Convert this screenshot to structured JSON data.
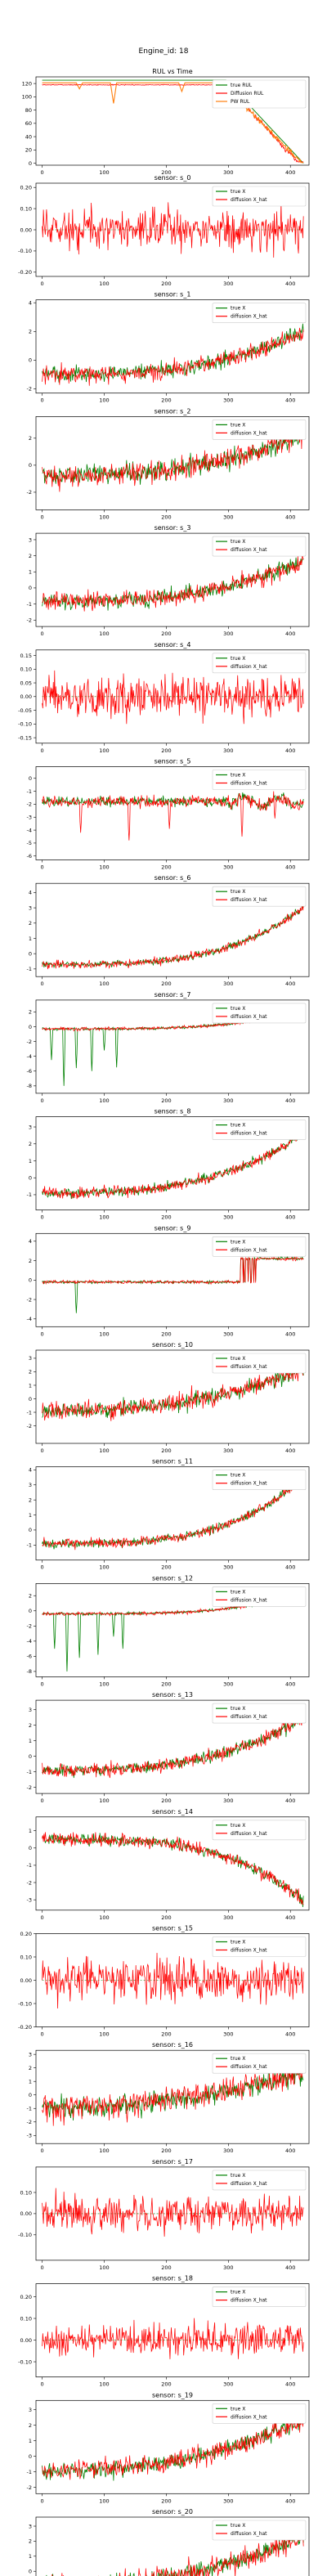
{
  "suptitle": "Engine_id: 18",
  "colors": {
    "true": "#008000",
    "pred": "#ff0000",
    "pw": "#ff7f0e",
    "rul_true": "#008000"
  },
  "chart_data": [
    {
      "type": "line",
      "title": "RUL vs Time",
      "xlim": [
        -10,
        430
      ],
      "xticks": [
        0,
        100,
        200,
        300,
        400
      ],
      "ylim": [
        -3,
        130
      ],
      "yticks": [
        0,
        20,
        40,
        60,
        80,
        100,
        120
      ],
      "legend": [
        "true RUL",
        "Diffusion RUL",
        "PW RUL"
      ],
      "legend_position": "top-right",
      "series": {
        "true": {
          "kind": "rul_true",
          "cap": 125,
          "length": 422
        },
        "diffusion": {
          "kind": "rul_diffusion",
          "base": 118
        },
        "pw": {
          "kind": "rul_pw",
          "base": 121,
          "dips": [
            [
              60,
              112
            ],
            [
              115,
              90
            ],
            [
              225,
              108
            ]
          ]
        }
      }
    },
    {
      "type": "line",
      "title": "sensor: s_0",
      "ylim": [
        -0.22,
        0.22
      ],
      "yticks": [
        -0.2,
        -0.1,
        0.0,
        0.1,
        0.2
      ],
      "legend": [
        "true X",
        "diffusion X_hat"
      ],
      "legend_position": "top-right",
      "series": {
        "kind": "flat",
        "noise": 0.09,
        "true_visible": false
      }
    },
    {
      "type": "line",
      "title": "sensor: s_1",
      "ylim": [
        -2.3,
        4.2
      ],
      "yticks": [
        -2,
        0,
        2,
        4
      ],
      "legend": [
        "true X",
        "diffusion X_hat"
      ],
      "legend_position": "top-right",
      "series": {
        "kind": "trend_up",
        "start": -1.0,
        "end": 2.0,
        "noise": 0.6,
        "curve": 3
      }
    },
    {
      "type": "line",
      "title": "sensor: s_2",
      "ylim": [
        -3.3,
        3.6
      ],
      "yticks": [
        -2,
        0,
        2
      ],
      "legend": [
        "true X",
        "diffusion X_hat"
      ],
      "legend_position": "top-right",
      "series": {
        "kind": "trend_up",
        "start": -0.8,
        "end": 2.2,
        "noise": 0.8,
        "curve": 2.5
      }
    },
    {
      "type": "line",
      "title": "sensor: s_3",
      "ylim": [
        -2.4,
        3.4
      ],
      "yticks": [
        -2,
        -1,
        0,
        1,
        2,
        3
      ],
      "legend": [
        "true X",
        "diffusion X_hat"
      ],
      "legend_position": "top-right",
      "series": {
        "kind": "trend_up",
        "start": -0.8,
        "end": 1.7,
        "noise": 0.55,
        "curve": 3
      }
    },
    {
      "type": "line",
      "title": "sensor: s_4",
      "ylim": [
        -0.17,
        0.17
      ],
      "yticks": [
        -0.15,
        -0.1,
        -0.05,
        0.0,
        0.05,
        0.1,
        0.15
      ],
      "legend": [
        "true X",
        "diffusion X_hat"
      ],
      "legend_position": "top-right",
      "series": {
        "kind": "flat",
        "noise": 0.07,
        "true_visible": false
      }
    },
    {
      "type": "line",
      "title": "sensor: s_5",
      "ylim": [
        -6.3,
        0.9
      ],
      "yticks": [
        -6,
        -5,
        -4,
        -3,
        -2,
        -1,
        0
      ],
      "legend": [
        "true X",
        "diffusion X_hat"
      ],
      "legend_position": "top-right",
      "series": {
        "kind": "stepped",
        "base": -1.8,
        "noise": 0.4,
        "spikes": [
          [
            62,
            -4.2
          ],
          [
            140,
            -4.8
          ],
          [
            205,
            -3.9
          ],
          [
            322,
            -4.5
          ],
          [
            375,
            -3.1
          ]
        ]
      }
    },
    {
      "type": "line",
      "title": "sensor: s_6",
      "ylim": [
        -1.5,
        4.6
      ],
      "yticks": [
        -1,
        0,
        1,
        2,
        3,
        4
      ],
      "legend": [
        "true X",
        "diffusion X_hat"
      ],
      "legend_position": "top-right",
      "series": {
        "kind": "trend_up",
        "start": -0.7,
        "end": 3.0,
        "noise": 0.25,
        "curve": 3.5
      }
    },
    {
      "type": "line",
      "title": "sensor: s_7",
      "ylim": [
        -9.0,
        3.6
      ],
      "yticks": [
        -8,
        -6,
        -4,
        -2,
        0,
        2
      ],
      "legend": [
        "true X",
        "diffusion X_hat"
      ],
      "legend_position": "top-right",
      "series": {
        "kind": "trend_up",
        "start": -0.3,
        "end": 2.3,
        "noise": 0.2,
        "curve": 4,
        "neg_spikes": [
          [
            15,
            -4.5
          ],
          [
            35,
            -8.0
          ],
          [
            55,
            -5.6
          ],
          [
            80,
            -6.0
          ],
          [
            100,
            -3.2
          ],
          [
            120,
            -5.5
          ]
        ]
      }
    },
    {
      "type": "line",
      "title": "sensor: s_8",
      "ylim": [
        -1.9,
        3.6
      ],
      "yticks": [
        -1,
        0,
        1,
        2,
        3
      ],
      "legend": [
        "true X",
        "diffusion X_hat"
      ],
      "legend_position": "top-right",
      "series": {
        "kind": "trend_up",
        "start": -0.9,
        "end": 2.6,
        "noise": 0.3,
        "curve": 3
      }
    },
    {
      "type": "line",
      "title": "sensor: s_9",
      "ylim": [
        -4.8,
        4.8
      ],
      "yticks": [
        -4,
        -2,
        0,
        2,
        4
      ],
      "legend": [
        "true X",
        "diffusion X_hat"
      ],
      "legend_position": "top-right",
      "series": {
        "kind": "jump",
        "base": -0.2,
        "jump_at": 320,
        "high": 2.2,
        "noise": 0.15,
        "neg_spikes": [
          [
            55,
            -3.4
          ]
        ]
      }
    },
    {
      "type": "line",
      "title": "sensor: s_10",
      "ylim": [
        -3.3,
        3.6
      ],
      "yticks": [
        -2,
        -1,
        0,
        1,
        2,
        3
      ],
      "legend": [
        "true X",
        "diffusion X_hat"
      ],
      "legend_position": "top-right",
      "series": {
        "kind": "trend_up",
        "start": -0.9,
        "end": 2.2,
        "noise": 0.7,
        "curve": 2.5
      }
    },
    {
      "type": "line",
      "title": "sensor: s_11",
      "ylim": [
        -2.0,
        4.2
      ],
      "yticks": [
        -1,
        0,
        1,
        2,
        3,
        4
      ],
      "legend": [
        "true X",
        "diffusion X_hat"
      ],
      "legend_position": "top-right",
      "series": {
        "kind": "trend_up",
        "start": -0.9,
        "end": 3.4,
        "noise": 0.3,
        "curve": 3.5
      }
    },
    {
      "type": "line",
      "title": "sensor: s_12",
      "ylim": [
        -8.7,
        3.6
      ],
      "yticks": [
        -8,
        -6,
        -4,
        -2,
        0,
        2
      ],
      "legend": [
        "true X",
        "diffusion X_hat"
      ],
      "legend_position": "top-right",
      "series": {
        "kind": "trend_up",
        "start": -0.4,
        "end": 2.4,
        "noise": 0.2,
        "curve": 4,
        "neg_spikes": [
          [
            20,
            -5.0
          ],
          [
            40,
            -8.0
          ],
          [
            60,
            -6.2
          ],
          [
            90,
            -5.8
          ],
          [
            115,
            -3.4
          ],
          [
            130,
            -5.0
          ]
        ]
      }
    },
    {
      "type": "line",
      "title": "sensor: s_13",
      "ylim": [
        -2.4,
        3.6
      ],
      "yticks": [
        -2,
        -1,
        0,
        1,
        2,
        3
      ],
      "legend": [
        "true X",
        "diffusion X_hat"
      ],
      "legend_position": "top-right",
      "series": {
        "kind": "trend_up",
        "start": -0.9,
        "end": 2.4,
        "noise": 0.4,
        "curve": 3
      }
    },
    {
      "type": "line",
      "title": "sensor: s_14",
      "ylim": [
        -3.6,
        1.8
      ],
      "yticks": [
        -3,
        -2,
        -1,
        0,
        1
      ],
      "legend": [
        "true X",
        "diffusion X_hat"
      ],
      "legend_position": "top-right",
      "series": {
        "kind": "trend_down",
        "start": 0.5,
        "end": -3.0,
        "noise": 0.35,
        "curve": 3.5
      }
    },
    {
      "type": "line",
      "title": "sensor: s_15",
      "ylim": [
        -0.2,
        0.2
      ],
      "yticks": [
        -0.2,
        -0.1,
        0.0,
        0.1,
        0.2
      ],
      "legend": [
        "true X",
        "diffusion X_hat"
      ],
      "legend_position": "top-right",
      "series": {
        "kind": "flat",
        "noise": 0.08,
        "true_visible": false
      }
    },
    {
      "type": "line",
      "title": "sensor: s_16",
      "ylim": [
        -3.6,
        3.3
      ],
      "yticks": [
        -3,
        -2,
        -1,
        0,
        1,
        2,
        3
      ],
      "legend": [
        "true X",
        "diffusion X_hat"
      ],
      "legend_position": "top-right",
      "series": {
        "kind": "trend_up",
        "start": -1.0,
        "end": 1.6,
        "noise": 0.85,
        "curve": 2
      }
    },
    {
      "type": "line",
      "title": "sensor: s_17",
      "ylim": [
        -0.22,
        0.22
      ],
      "yticks": [
        -0.1,
        0.0,
        0.1
      ],
      "legend": [
        "true X",
        "diffusion X_hat"
      ],
      "legend_position": "top-right",
      "series": {
        "kind": "flat",
        "noise": 0.08,
        "true_visible": false
      }
    },
    {
      "type": "line",
      "title": "sensor: s_18",
      "ylim": [
        -0.17,
        0.26
      ],
      "yticks": [
        -0.1,
        0.0,
        0.1,
        0.2
      ],
      "legend": [
        "true X",
        "diffusion X_hat"
      ],
      "legend_position": "top-right",
      "series": {
        "kind": "flat",
        "noise": 0.07,
        "true_visible": false
      }
    },
    {
      "type": "line",
      "title": "sensor: s_19",
      "ylim": [
        -2.4,
        3.6
      ],
      "yticks": [
        -2,
        -1,
        0,
        1,
        2,
        3
      ],
      "legend": [
        "true X",
        "diffusion X_hat"
      ],
      "legend_position": "top-right",
      "series": {
        "kind": "trend_up",
        "start": -0.9,
        "end": 2.4,
        "noise": 0.6,
        "curve": 2.5
      }
    },
    {
      "type": "line",
      "title": "sensor: s_20",
      "ylim": [
        -2.6,
        3.6
      ],
      "yticks": [
        -2,
        -1,
        0,
        1,
        2,
        3
      ],
      "legend": [
        "true X",
        "diffusion X_hat"
      ],
      "legend_position": "top-right",
      "series": {
        "kind": "trend_up",
        "start": -0.9,
        "end": 2.4,
        "noise": 0.65,
        "curve": 2.5
      }
    }
  ]
}
